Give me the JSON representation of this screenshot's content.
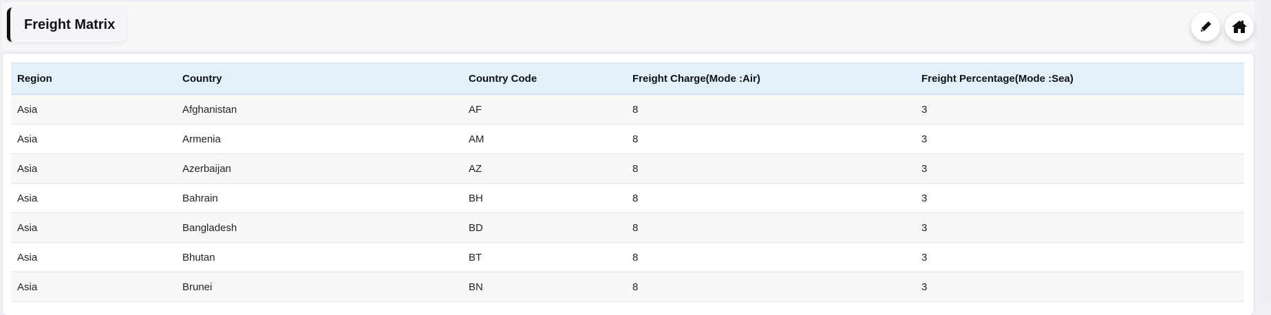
{
  "header": {
    "title": "Freight Matrix",
    "edit_icon": "pencil-icon",
    "home_icon": "home-icon"
  },
  "table": {
    "columns": [
      "Region",
      "Country",
      "Country Code",
      "Freight Charge(Mode :Air)",
      "Freight Percentage(Mode :Sea)"
    ],
    "rows": [
      [
        "Asia",
        "Afghanistan",
        "AF",
        "8",
        "3"
      ],
      [
        "Asia",
        "Armenia",
        "AM",
        "8",
        "3"
      ],
      [
        "Asia",
        "Azerbaijan",
        "AZ",
        "8",
        "3"
      ],
      [
        "Asia",
        "Bahrain",
        "BH",
        "8",
        "3"
      ],
      [
        "Asia",
        "Bangladesh",
        "BD",
        "8",
        "3"
      ],
      [
        "Asia",
        "Bhutan",
        "BT",
        "8",
        "3"
      ],
      [
        "Asia",
        "Brunei",
        "BN",
        "8",
        "3"
      ]
    ]
  }
}
